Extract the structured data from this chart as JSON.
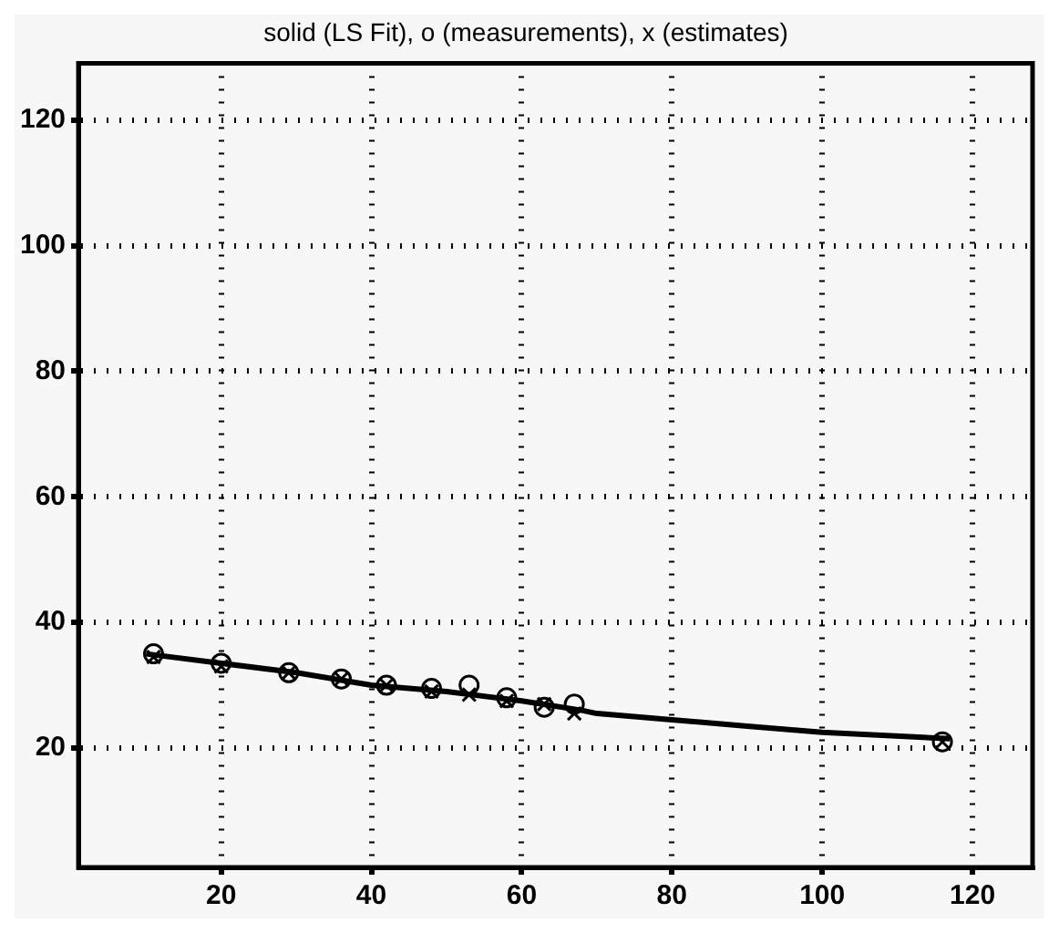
{
  "chart_data": {
    "type": "line",
    "title": "solid (LS Fit), o (measurements), x (estimates)",
    "xlim": [
      1,
      128
    ],
    "xticks": [
      20,
      40,
      60,
      80,
      100,
      120
    ],
    "ylim": [
      1,
      129
    ],
    "yticks": [
      20,
      40,
      60,
      80,
      100,
      120
    ],
    "grid": true,
    "legend": false,
    "series": [
      {
        "color": "#000000",
        "marker": "none",
        "line_style": "solid",
        "x": [
          10,
          20,
          30,
          40,
          50,
          60,
          68,
          70,
          80,
          90,
          100,
          117
        ],
        "values": [
          35,
          33.5,
          32,
          30,
          29,
          27.5,
          26,
          25.5,
          24.5,
          23.5,
          22.5,
          21.5
        ]
      },
      {
        "type": "scatter",
        "color": "#000000",
        "marker": "circle",
        "x": [
          11,
          20,
          29,
          36,
          42,
          48,
          53,
          58,
          63,
          67,
          116
        ],
        "values": [
          35,
          33.5,
          32,
          31,
          30,
          29.5,
          30,
          28,
          26.5,
          27,
          21
        ]
      },
      {
        "type": "scatter",
        "color": "#000000",
        "marker": "cross",
        "x": [
          11,
          20,
          29,
          36,
          42,
          48,
          53,
          58,
          63,
          67,
          116
        ],
        "values": [
          34.5,
          33,
          32,
          31,
          30,
          29,
          28.5,
          27.5,
          27,
          25.5,
          21
        ]
      }
    ]
  }
}
